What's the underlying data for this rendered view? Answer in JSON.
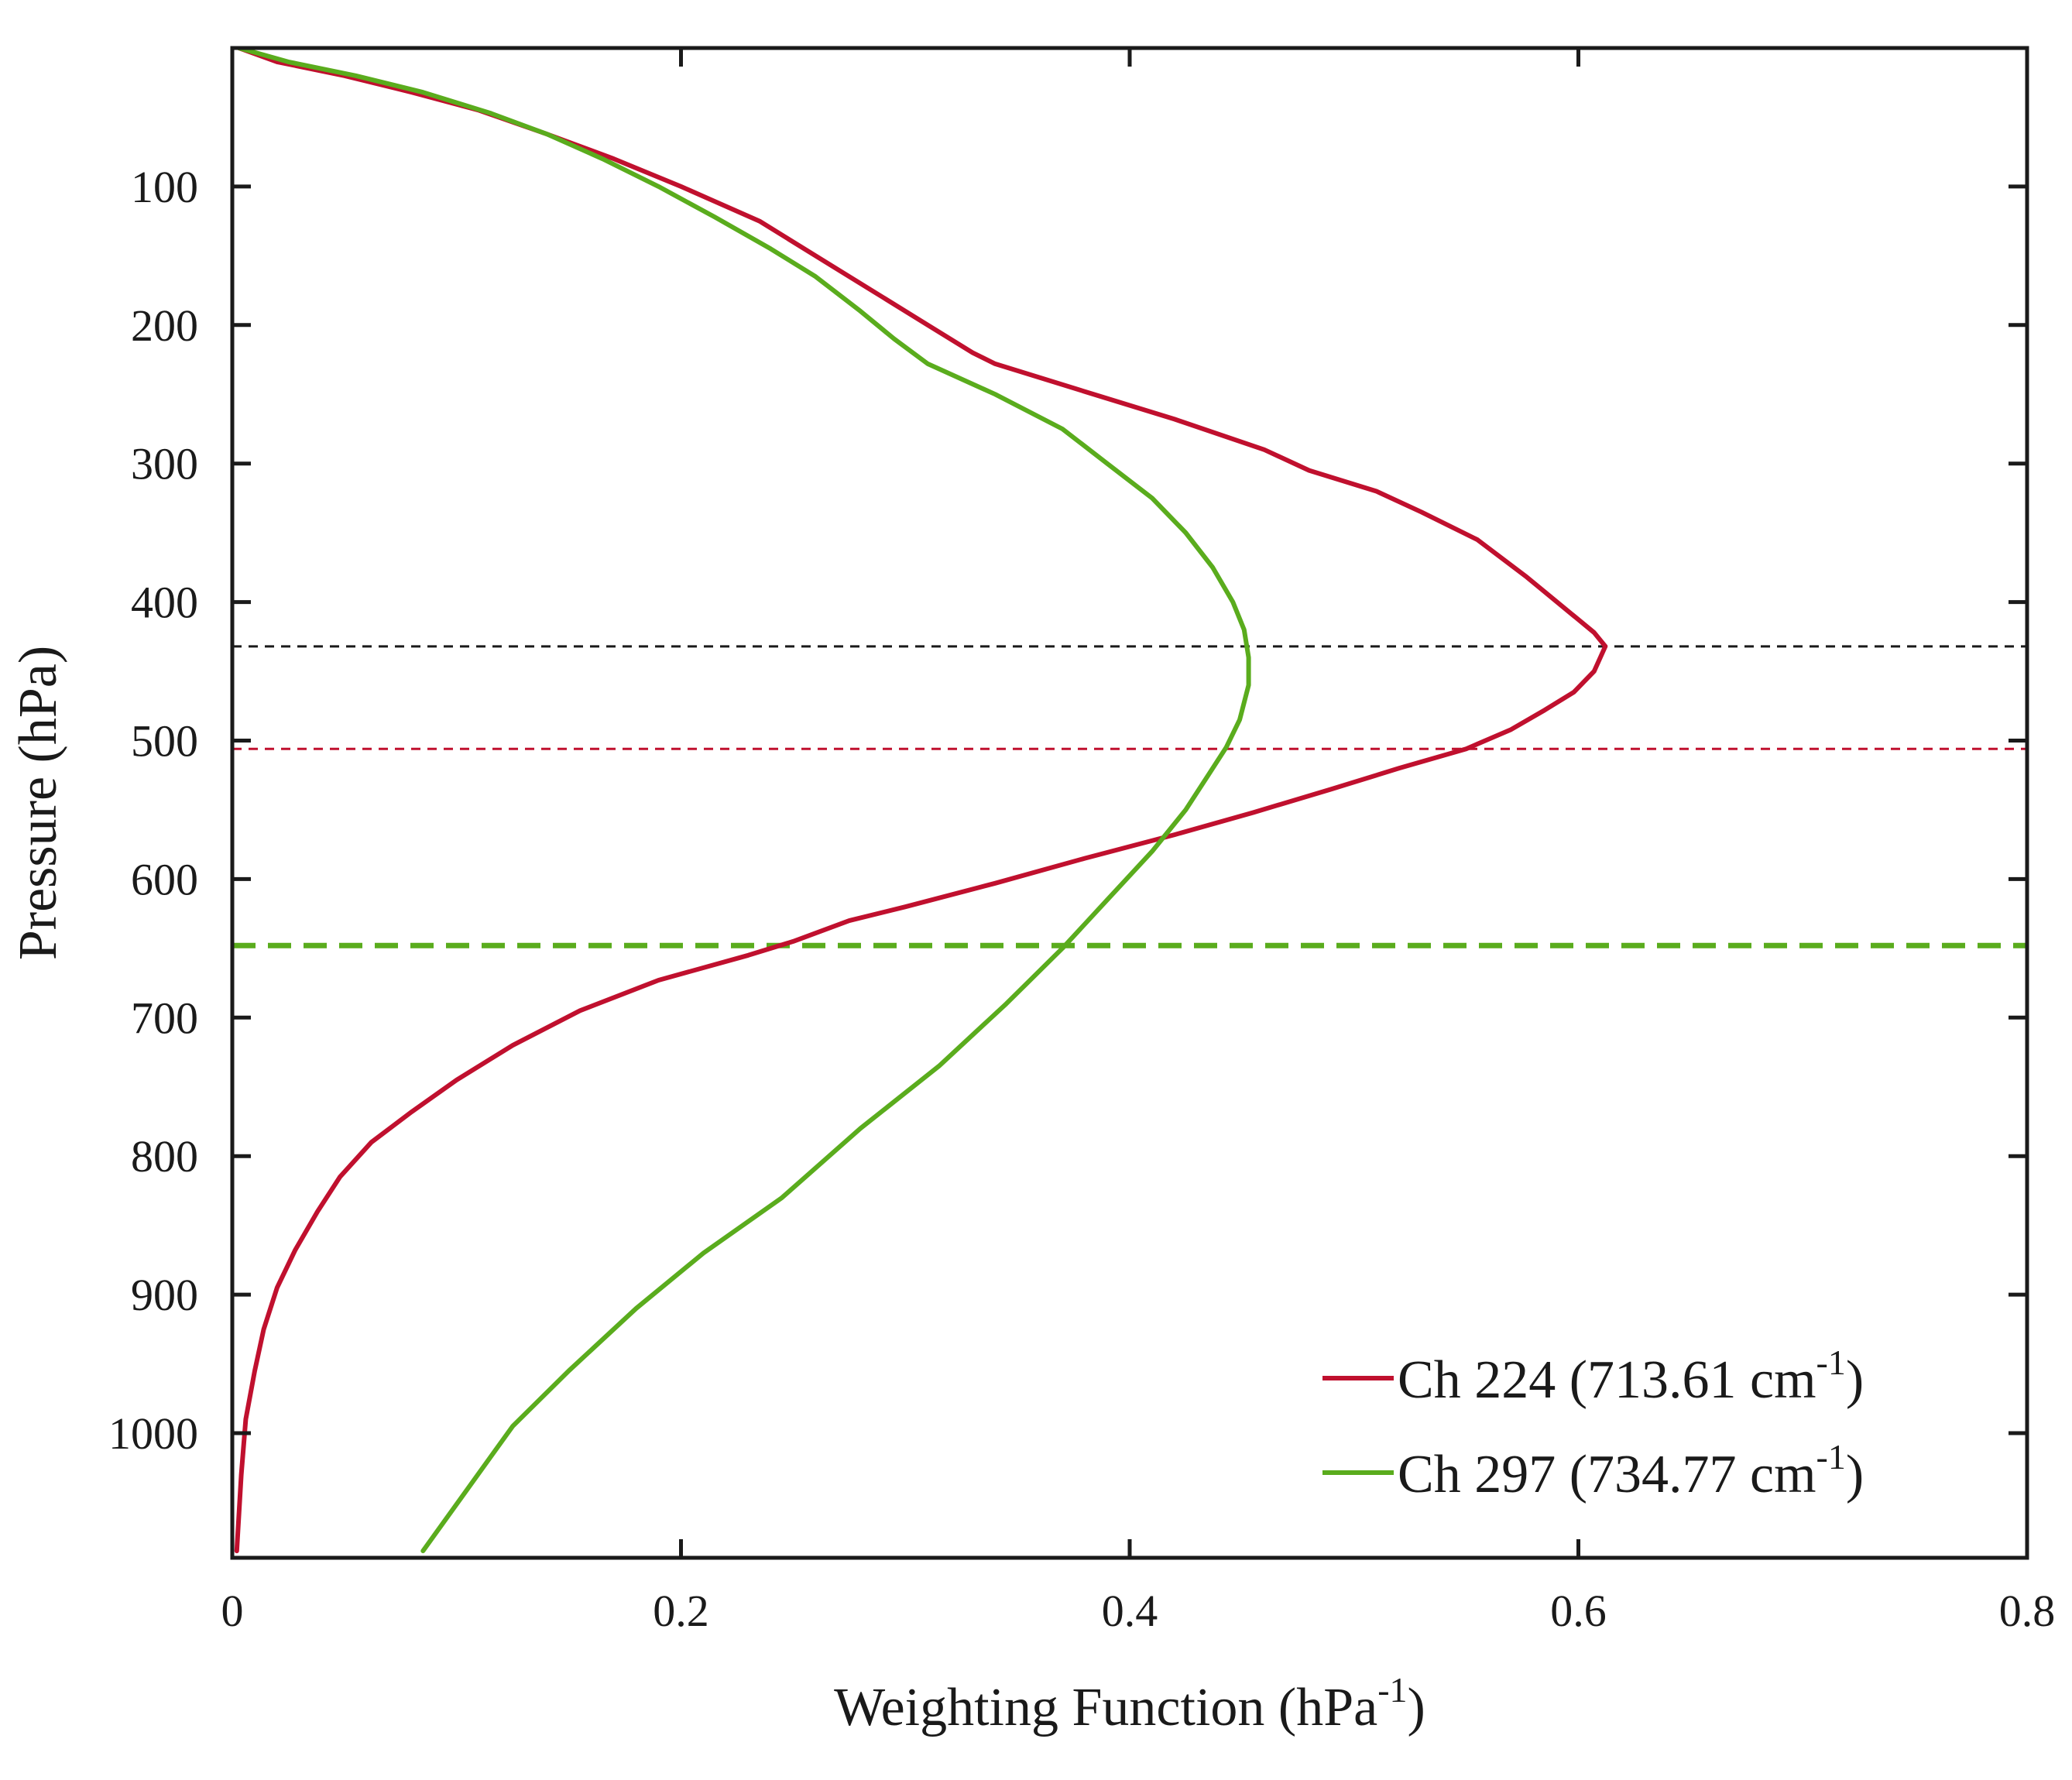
{
  "chart_data": {
    "type": "line",
    "xlabel": "Weighting Function (hPa",
    "xlabel_superscript": "-1",
    "xlabel_suffix": ")",
    "ylabel": "Pressure (hPa)",
    "xlim": [
      0,
      0.8
    ],
    "ylim": [
      1090,
      0
    ],
    "y_reversed": true,
    "xticks": [
      0,
      0.2,
      0.4,
      0.6,
      0.8
    ],
    "xtick_labels": [
      "0",
      "0.2",
      "0.4",
      "0.6",
      "0.8"
    ],
    "yticks": [
      100,
      200,
      300,
      400,
      500,
      600,
      700,
      800,
      900,
      1000
    ],
    "ytick_labels": [
      "100",
      "200",
      "300",
      "400",
      "500",
      "600",
      "700",
      "800",
      "900",
      "1000"
    ],
    "grid": false,
    "legend_position": "bottom-right",
    "series": [
      {
        "name": "Ch 224 (713.61 cm",
        "name_superscript": "-1",
        "name_suffix": ")",
        "color": "#c0102e",
        "points": [
          [
            0.003,
            0
          ],
          [
            0.02,
            10
          ],
          [
            0.05,
            20
          ],
          [
            0.08,
            32
          ],
          [
            0.11,
            45
          ],
          [
            0.14,
            62
          ],
          [
            0.17,
            80
          ],
          [
            0.2,
            100
          ],
          [
            0.235,
            125
          ],
          [
            0.265,
            155
          ],
          [
            0.29,
            180
          ],
          [
            0.31,
            200
          ],
          [
            0.33,
            220
          ],
          [
            0.34,
            228
          ],
          [
            0.38,
            248
          ],
          [
            0.42,
            268
          ],
          [
            0.46,
            290
          ],
          [
            0.48,
            305
          ],
          [
            0.51,
            320
          ],
          [
            0.53,
            335
          ],
          [
            0.555,
            355
          ],
          [
            0.577,
            382
          ],
          [
            0.598,
            410
          ],
          [
            0.607,
            422
          ],
          [
            0.612,
            432
          ],
          [
            0.607,
            450
          ],
          [
            0.598,
            465
          ],
          [
            0.585,
            478
          ],
          [
            0.57,
            492
          ],
          [
            0.55,
            506
          ],
          [
            0.52,
            520
          ],
          [
            0.49,
            535
          ],
          [
            0.455,
            552
          ],
          [
            0.42,
            568
          ],
          [
            0.38,
            585
          ],
          [
            0.34,
            603
          ],
          [
            0.3,
            620
          ],
          [
            0.275,
            630
          ],
          [
            0.25,
            645
          ],
          [
            0.23,
            655
          ],
          [
            0.19,
            673
          ],
          [
            0.155,
            695
          ],
          [
            0.125,
            720
          ],
          [
            0.1,
            745
          ],
          [
            0.08,
            768
          ],
          [
            0.062,
            790
          ],
          [
            0.048,
            815
          ],
          [
            0.038,
            840
          ],
          [
            0.028,
            868
          ],
          [
            0.02,
            895
          ],
          [
            0.014,
            925
          ],
          [
            0.01,
            955
          ],
          [
            0.006,
            990
          ],
          [
            0.004,
            1030
          ],
          [
            0.002,
            1085
          ]
        ]
      },
      {
        "name": "Ch 297 (734.77 cm",
        "name_superscript": "-1",
        "name_suffix": ")",
        "color": "#5aac1d",
        "points": [
          [
            0.003,
            0
          ],
          [
            0.025,
            10
          ],
          [
            0.055,
            20
          ],
          [
            0.085,
            32
          ],
          [
            0.115,
            47
          ],
          [
            0.14,
            62
          ],
          [
            0.165,
            80
          ],
          [
            0.19,
            100
          ],
          [
            0.215,
            122
          ],
          [
            0.24,
            145
          ],
          [
            0.26,
            165
          ],
          [
            0.28,
            190
          ],
          [
            0.295,
            210
          ],
          [
            0.31,
            228
          ],
          [
            0.34,
            250
          ],
          [
            0.37,
            275
          ],
          [
            0.39,
            300
          ],
          [
            0.41,
            325
          ],
          [
            0.425,
            350
          ],
          [
            0.437,
            375
          ],
          [
            0.446,
            400
          ],
          [
            0.451,
            420
          ],
          [
            0.453,
            440
          ],
          [
            0.453,
            460
          ],
          [
            0.449,
            485
          ],
          [
            0.443,
            505
          ],
          [
            0.435,
            525
          ],
          [
            0.425,
            550
          ],
          [
            0.41,
            580
          ],
          [
            0.39,
            615
          ],
          [
            0.37,
            650
          ],
          [
            0.345,
            690
          ],
          [
            0.315,
            735
          ],
          [
            0.28,
            780
          ],
          [
            0.245,
            830
          ],
          [
            0.21,
            870
          ],
          [
            0.18,
            910
          ],
          [
            0.15,
            955
          ],
          [
            0.125,
            995
          ],
          [
            0.105,
            1040
          ],
          [
            0.085,
            1085
          ]
        ]
      }
    ],
    "reference_lines": [
      {
        "name": "black-dashed-line",
        "y": 432,
        "color": "#1a1a1a",
        "style": "fine-dash"
      },
      {
        "name": "red-dashed-line",
        "y": 506,
        "color": "#c0102e",
        "style": "fine-dash"
      },
      {
        "name": "green-dashed-line",
        "y": 648,
        "color": "#5aac1d",
        "style": "bold-dash"
      }
    ]
  }
}
